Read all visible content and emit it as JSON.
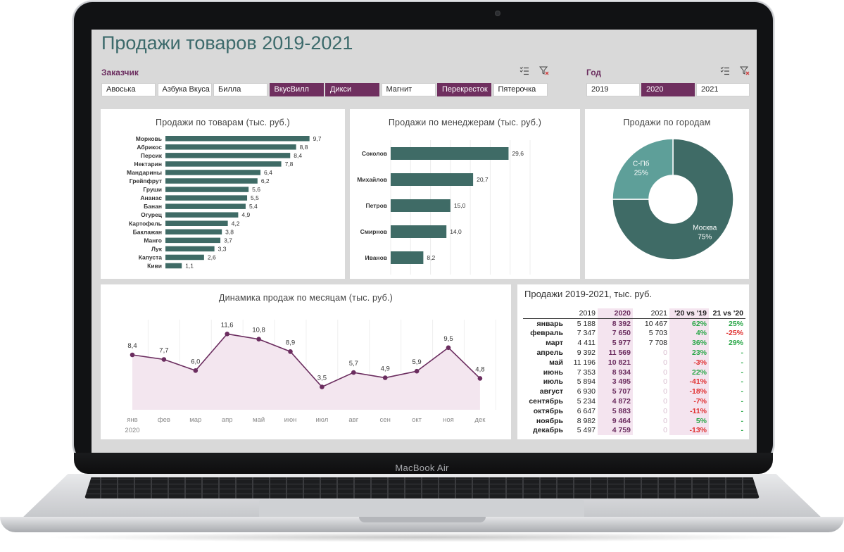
{
  "device": {
    "brand": "MacBook Air"
  },
  "dashboard": {
    "title": "Продажи товаров 2019-2021"
  },
  "slicers": {
    "customer": {
      "label": "Заказчик",
      "items": [
        {
          "label": "Авоська",
          "selected": false
        },
        {
          "label": "Азбука Вкуса",
          "selected": false
        },
        {
          "label": "Билла",
          "selected": false
        },
        {
          "label": "ВкусВилл",
          "selected": true
        },
        {
          "label": "Дикси",
          "selected": true
        },
        {
          "label": "Магнит",
          "selected": false
        },
        {
          "label": "Перекресток",
          "selected": true
        },
        {
          "label": "Пятерочка",
          "selected": false
        }
      ]
    },
    "year": {
      "label": "Год",
      "items": [
        {
          "label": "2019",
          "selected": false
        },
        {
          "label": "2020",
          "selected": true
        },
        {
          "label": "2021",
          "selected": false
        }
      ]
    }
  },
  "colors": {
    "accent": "#6f2f5f",
    "bar": "#3f6b66",
    "line": "#6b2d5f",
    "area": "#f3e6ef",
    "pie_main": "#3f6b66",
    "pie_light": "#5e9f99",
    "positive": "#2aa748",
    "negative": "#e03030"
  },
  "chart_data": [
    {
      "type": "bar",
      "orientation": "horizontal",
      "title": "Продажи по товарам (тыс. руб.)",
      "categories": [
        "Морковь",
        "Абрикос",
        "Персик",
        "Нектарин",
        "Мандарины",
        "Грейпфрут",
        "Груши",
        "Ананас",
        "Банан",
        "Огурец",
        "Картофель",
        "Баклажан",
        "Манго",
        "Лук",
        "Капуста",
        "Киви"
      ],
      "values": [
        9.7,
        8.8,
        8.4,
        7.8,
        6.4,
        6.2,
        5.6,
        5.5,
        5.4,
        4.9,
        4.2,
        3.8,
        3.7,
        3.3,
        2.6,
        1.1
      ],
      "labels": [
        "9,7",
        "8,8",
        "8,4",
        "7,8",
        "6,4",
        "6,2",
        "5,6",
        "5,5",
        "5,4",
        "4,9",
        "4,2",
        "3,8",
        "3,7",
        "3,3",
        "2,6",
        "1,1"
      ],
      "xlim": [
        0,
        10
      ]
    },
    {
      "type": "bar",
      "orientation": "horizontal",
      "title": "Продажи по менеджерам (тыс. руб.)",
      "categories": [
        "Соколов",
        "Михайлов",
        "Петров",
        "Смирнов",
        "Иванов"
      ],
      "values": [
        29.6,
        20.7,
        15.0,
        14.0,
        8.2
      ],
      "labels": [
        "29,6",
        "20,7",
        "15,0",
        "14,0",
        "8,2"
      ],
      "xlim": [
        0,
        35
      ]
    },
    {
      "type": "pie",
      "style": "donut",
      "title": "Продажи по городам",
      "slices": [
        {
          "name": "Москва",
          "value": 75,
          "label": "75%"
        },
        {
          "name": "С-Пб",
          "value": 25,
          "label": "25%"
        }
      ]
    },
    {
      "type": "area",
      "title": "Динамика продаж по месяцам (тыс. руб.)",
      "categories": [
        "янв",
        "фев",
        "мар",
        "апр",
        "май",
        "июн",
        "июл",
        "авг",
        "сен",
        "окт",
        "ноя",
        "дек"
      ],
      "year_label": "2020",
      "values": [
        8.4,
        7.7,
        6.0,
        11.6,
        10.8,
        8.9,
        3.5,
        5.7,
        4.9,
        5.9,
        9.5,
        4.8
      ],
      "labels": [
        "8,4",
        "7,7",
        "6,0",
        "11,6",
        "10,8",
        "8,9",
        "3,5",
        "5,7",
        "4,9",
        "5,9",
        "9,5",
        "4,8"
      ],
      "ylim": [
        0,
        14
      ]
    },
    {
      "type": "table",
      "title": "Продажи 2019-2021, тыс. руб.",
      "columns": [
        "",
        "2019",
        "2020",
        "2021",
        "'20 vs '19",
        "21 vs '20"
      ],
      "rows": [
        [
          "январь",
          "5 188",
          "8 392",
          "10 467",
          "62%",
          "25%"
        ],
        [
          "февраль",
          "7 347",
          "7 650",
          "5 703",
          "4%",
          "-25%"
        ],
        [
          "март",
          "4 411",
          "5 977",
          "7 708",
          "36%",
          "29%"
        ],
        [
          "апрель",
          "9 392",
          "11 569",
          "0",
          "23%",
          "-"
        ],
        [
          "май",
          "11 196",
          "10 821",
          "0",
          "-3%",
          "-"
        ],
        [
          "июнь",
          "7 353",
          "8 934",
          "0",
          "22%",
          "-"
        ],
        [
          "июль",
          "5 894",
          "3 495",
          "0",
          "-41%",
          "-"
        ],
        [
          "август",
          "6 930",
          "5 707",
          "0",
          "-18%",
          "-"
        ],
        [
          "сентябрь",
          "5 234",
          "4 872",
          "0",
          "-7%",
          "-"
        ],
        [
          "октябрь",
          "6 647",
          "5 883",
          "0",
          "-11%",
          "-"
        ],
        [
          "ноябрь",
          "8 982",
          "9 464",
          "0",
          "5%",
          "-"
        ],
        [
          "декабрь",
          "5 497",
          "4 759",
          "0",
          "-13%",
          "-"
        ]
      ]
    }
  ]
}
